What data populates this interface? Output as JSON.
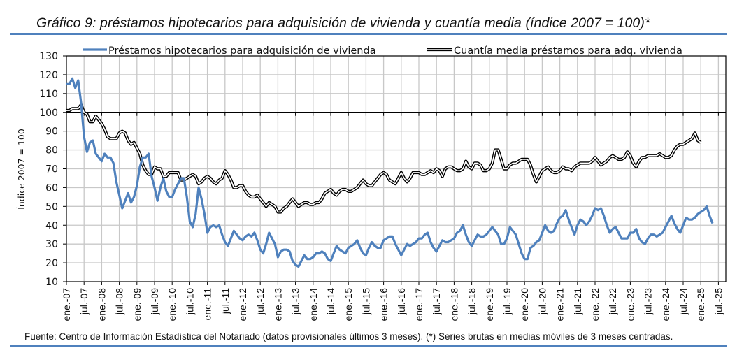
{
  "title": "Gráfico 9: préstamos hipotecarios para adquisición de vivienda y cuantía media (índice 2007 = 100)*",
  "source": "Fuente: Centro de Información Estadística del Notariado (datos provisionales últimos 3 meses). (*) Series brutas en medias móviles de 3 meses centradas.",
  "colors": {
    "rule": "#4f81bd",
    "series1": "#4f81bd",
    "series2": "#000000",
    "grid": "#c8c8c8"
  },
  "chart_data": {
    "type": "line",
    "title": "Gráfico 9: préstamos hipotecarios para adquisición de vivienda y cuantía media (índice 2007 = 100)*",
    "xlabel": "",
    "ylabel": "Índice 2007 = 100",
    "ylim": [
      10,
      130
    ],
    "yticks": [
      10,
      20,
      30,
      40,
      50,
      60,
      70,
      80,
      90,
      100,
      110,
      120,
      130
    ],
    "grid": true,
    "legend_position": "top",
    "x_start": "2007-01",
    "x_frequency": "monthly",
    "xtick_labels": [
      "ene.-07",
      "jul.-07",
      "ene.-08",
      "jul.-08",
      "ene.-09",
      "jul.-09",
      "ene.-10",
      "jul.-10",
      "ene.-11",
      "jul.-11",
      "ene.-12",
      "jul.-12",
      "ene.-13",
      "jul.-13",
      "ene.-14",
      "jul.-14",
      "ene.-15",
      "jul.-15",
      "ene.-16",
      "jul.-16",
      "ene.-17",
      "jul.-17",
      "ene.-18",
      "jul.-18",
      "ene.-19",
      "jul.-19",
      "ene.-20",
      "jul.-20",
      "ene.-21",
      "jul.-21",
      "ene.-22",
      "jul.-22",
      "ene.-23",
      "jul.-23",
      "ene.-24",
      "jul.-24",
      "ene.-25",
      "jul.-25"
    ],
    "series": [
      {
        "name": "Préstamos hipotecarios para adquisición de vivienda",
        "style": "solid-blue",
        "values": [
          115,
          115,
          118,
          113,
          117,
          105,
          87,
          79,
          84,
          85,
          78,
          76,
          74,
          78,
          76,
          76,
          73,
          63,
          56,
          49,
          53,
          57,
          52,
          55,
          61,
          71,
          76,
          76,
          78,
          66,
          60,
          53,
          60,
          65,
          58,
          55,
          55,
          59,
          62,
          65,
          65,
          55,
          42,
          39,
          46,
          60,
          54,
          46,
          36,
          39,
          40,
          39,
          40,
          35,
          31,
          29,
          33,
          37,
          35,
          33,
          32,
          34,
          35,
          34,
          36,
          32,
          27,
          25,
          30,
          36,
          33,
          30,
          23,
          26,
          27,
          27,
          26,
          21,
          19,
          18,
          21,
          24,
          22,
          22,
          23,
          25,
          25,
          26,
          25,
          22,
          21,
          25,
          29,
          27,
          26,
          25,
          28,
          29,
          30,
          32,
          28,
          25,
          24,
          28,
          31,
          29,
          28,
          28,
          32,
          33,
          34,
          34,
          30,
          27,
          24,
          27,
          30,
          29,
          30,
          31,
          33,
          33,
          35,
          36,
          31,
          28,
          26,
          29,
          32,
          31,
          31,
          32,
          33,
          36,
          37,
          40,
          35,
          31,
          29,
          32,
          35,
          34,
          34,
          35,
          37,
          39,
          37,
          35,
          30,
          30,
          33,
          39,
          37,
          35,
          30,
          25,
          22,
          22,
          28,
          29,
          31,
          32,
          36,
          40,
          37,
          36,
          37,
          41,
          44,
          45,
          48,
          43,
          39,
          35,
          40,
          43,
          42,
          40,
          42,
          45,
          49,
          48,
          49,
          45,
          40,
          36,
          38,
          39,
          36,
          33,
          33,
          33,
          36,
          36,
          38,
          33,
          31,
          30,
          33,
          35,
          35,
          34,
          35,
          36,
          39,
          42,
          45,
          41,
          38,
          36,
          40,
          44,
          43,
          43,
          44,
          46,
          47,
          48,
          50,
          45,
          41
        ]
      },
      {
        "name": "Cuantía media préstamos para adq. vivienda",
        "style": "double-black",
        "values": [
          101,
          101,
          102,
          102,
          102,
          104,
          100,
          99,
          95,
          95,
          98,
          96,
          94,
          91,
          87,
          86,
          86,
          86,
          89,
          90,
          89,
          85,
          83,
          84,
          81,
          78,
          72,
          69,
          67,
          67,
          71,
          70,
          70,
          66,
          66,
          68,
          68,
          68,
          68,
          64,
          64,
          65,
          66,
          67,
          66,
          62,
          63,
          65,
          66,
          65,
          63,
          62,
          64,
          65,
          69,
          67,
          64,
          60,
          60,
          61,
          61,
          58,
          56,
          55,
          55,
          56,
          54,
          52,
          50,
          52,
          51,
          50,
          47,
          47,
          49,
          50,
          52,
          54,
          52,
          50,
          51,
          52,
          52,
          51,
          51,
          52,
          52,
          54,
          57,
          58,
          59,
          57,
          56,
          58,
          59,
          59,
          58,
          58,
          59,
          60,
          62,
          64,
          62,
          61,
          61,
          63,
          65,
          67,
          68,
          67,
          64,
          63,
          62,
          65,
          68,
          65,
          63,
          65,
          68,
          68,
          68,
          67,
          67,
          68,
          69,
          68,
          70,
          69,
          66,
          70,
          71,
          71,
          70,
          69,
          69,
          70,
          74,
          71,
          70,
          73,
          73,
          72,
          69,
          69,
          70,
          73,
          80,
          80,
          75,
          70,
          70,
          72,
          73,
          73,
          74,
          75,
          75,
          75,
          72,
          67,
          63,
          66,
          69,
          70,
          71,
          69,
          68,
          68,
          69,
          71,
          70,
          70,
          69,
          71,
          72,
          73,
          73,
          73,
          73,
          74,
          76,
          74,
          72,
          73,
          74,
          76,
          77,
          76,
          75,
          75,
          76,
          79,
          77,
          73,
          71,
          74,
          76,
          76,
          77,
          77,
          77,
          77,
          78,
          77,
          76,
          76,
          77,
          80,
          82,
          83,
          83,
          84,
          85,
          86,
          89,
          85,
          84
        ]
      }
    ]
  }
}
